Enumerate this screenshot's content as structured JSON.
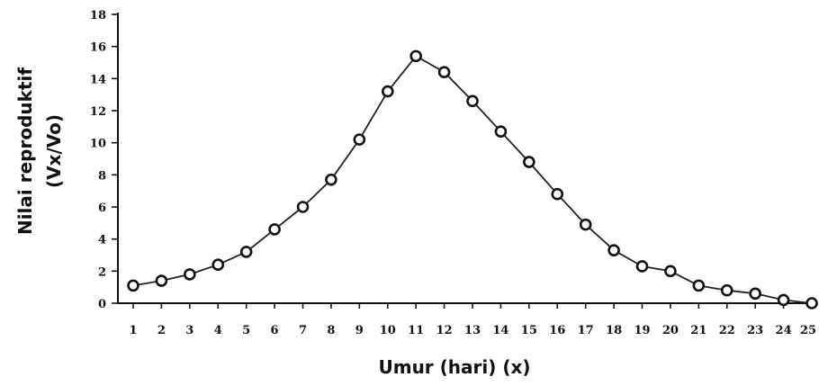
{
  "chart_data": {
    "type": "line",
    "title": "",
    "xlabel": "Umur (hari) (x)",
    "ylabel_lines": [
      "Nilai reproduktif",
      "(Vx/Vo)"
    ],
    "x": [
      1,
      2,
      3,
      4,
      5,
      6,
      7,
      8,
      9,
      10,
      11,
      12,
      13,
      14,
      15,
      16,
      17,
      18,
      19,
      20,
      21,
      22,
      23,
      24,
      25
    ],
    "series": [
      {
        "values": [
          1.1,
          1.4,
          1.8,
          2.4,
          3.2,
          4.6,
          6.0,
          7.7,
          10.2,
          13.2,
          15.4,
          14.4,
          12.6,
          10.7,
          8.8,
          6.8,
          4.9,
          3.3,
          2.3,
          2.0,
          1.1,
          0.8,
          0.6,
          0.2,
          0.0
        ]
      }
    ],
    "xlim": [
      1,
      25
    ],
    "ylim": [
      0,
      18
    ],
    "yticks": [
      0,
      2,
      4,
      6,
      8,
      10,
      12,
      14,
      16,
      18
    ],
    "ytick_labels": [
      "0",
      "2",
      "4",
      "6",
      "8",
      "10",
      "12",
      "14",
      "16",
      "18"
    ],
    "grid": false,
    "legend": "none",
    "colors": {
      "line": "#222222",
      "marker_stroke": "#111111",
      "marker_fill": "#ffffff"
    }
  }
}
